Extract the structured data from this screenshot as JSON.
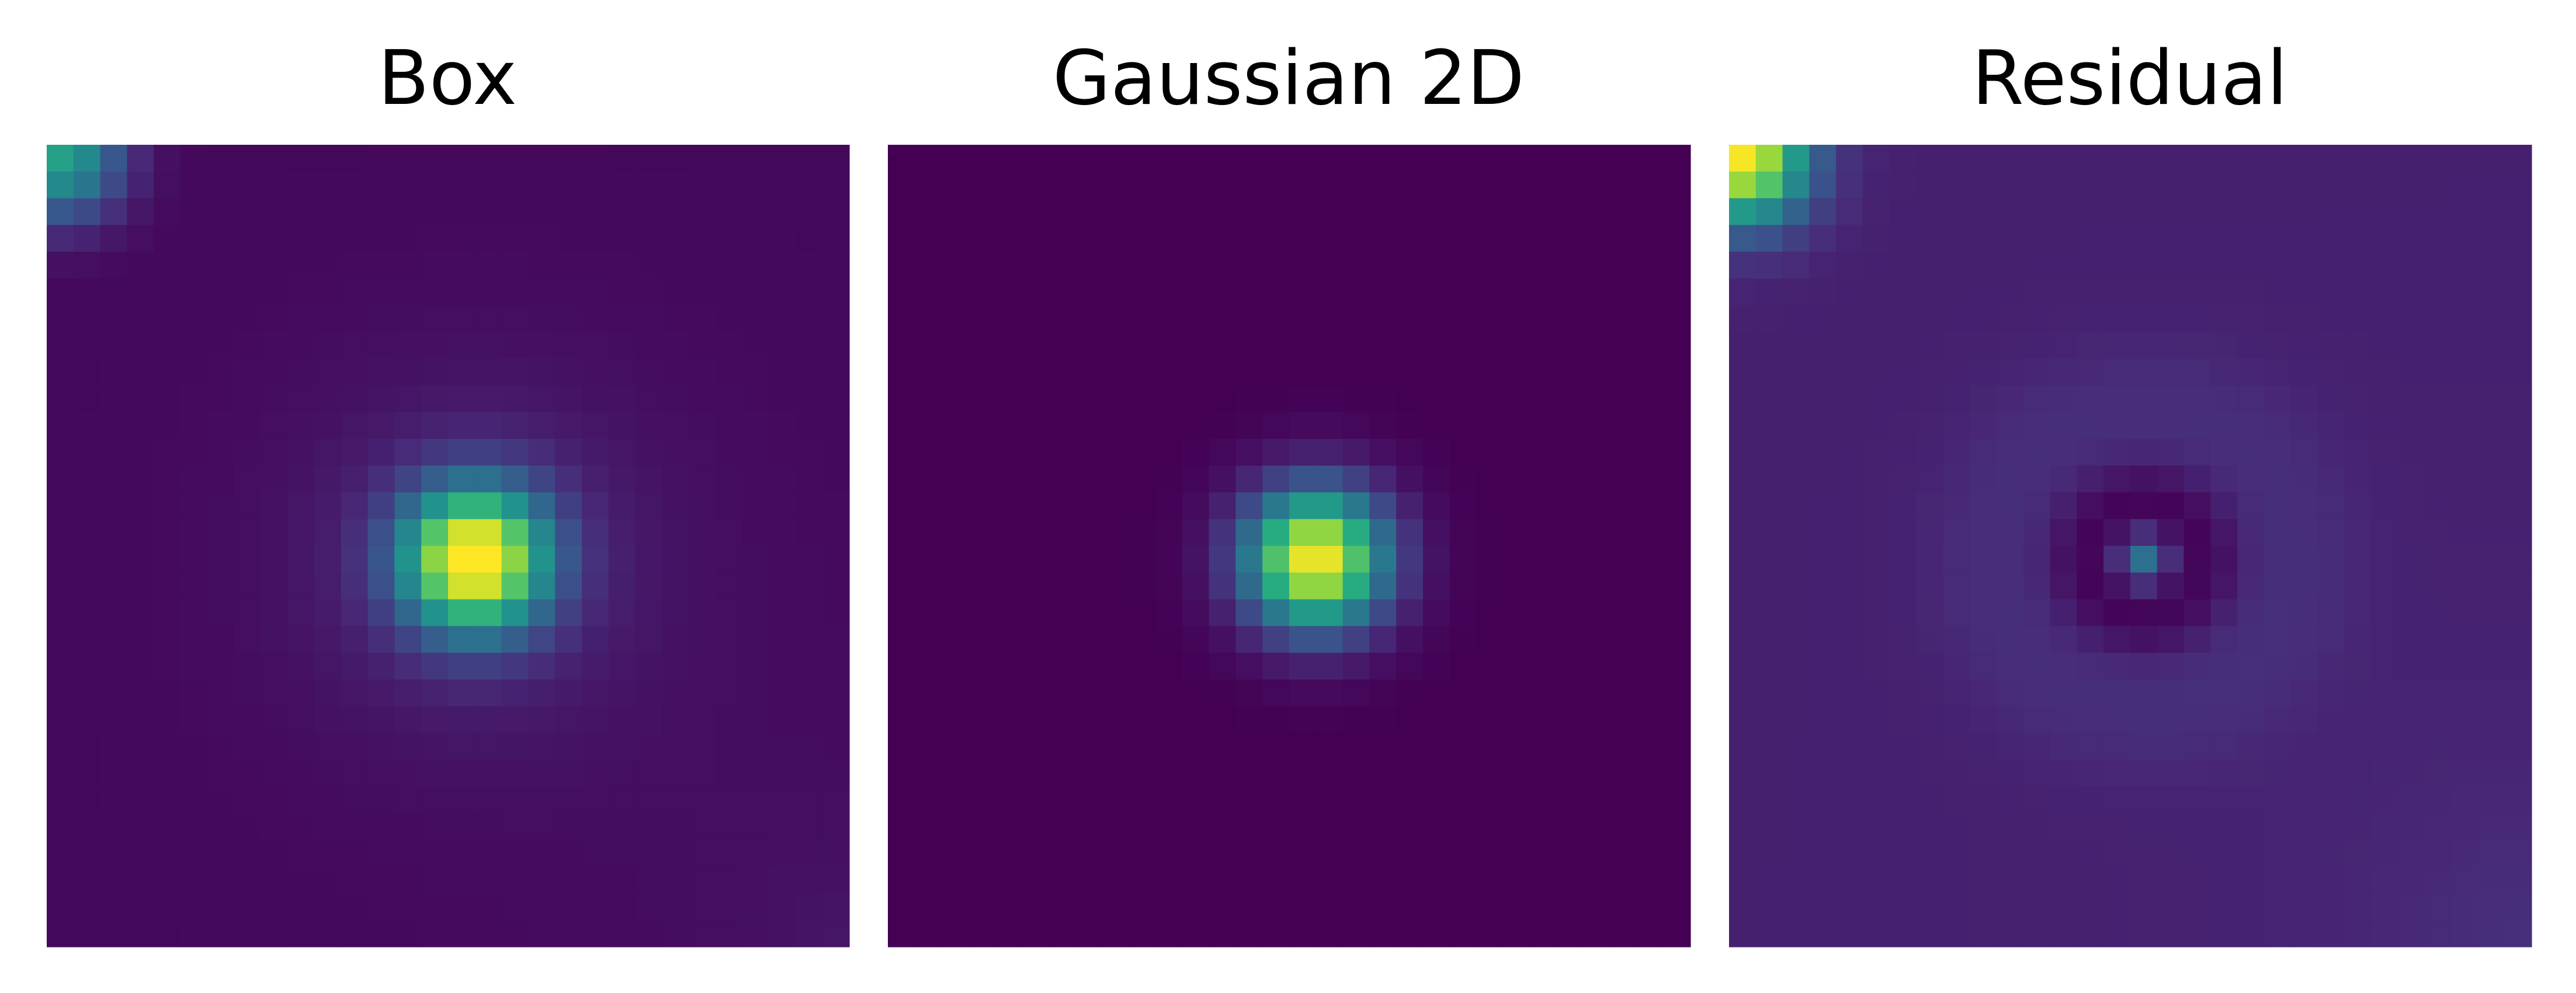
{
  "chart_data": [
    {
      "type": "heatmap",
      "title": "Box",
      "grid": false,
      "colormap": "viridis",
      "size": [
        30,
        30
      ],
      "vmin": 0,
      "vmax": 1,
      "model": {
        "background": 0.02,
        "peak": {
          "row": 15,
          "col": 15.5,
          "amplitude": 0.98,
          "sigma": 1.9
        },
        "halo": {
          "amplitude": 0.09,
          "sigma": 5.0
        },
        "corner_artifact": {
          "row": 0,
          "col": 0,
          "amplitude": 0.55,
          "sigma": 1.6
        },
        "edge_glow": {
          "corner": "bottom-right",
          "amplitude": 0.04
        }
      }
    },
    {
      "type": "heatmap",
      "title": "Gaussian 2D",
      "grid": false,
      "colormap": "viridis",
      "size": [
        30,
        30
      ],
      "vmin": 0,
      "vmax": 1,
      "model": {
        "background": 0.0,
        "peak": {
          "row": 15,
          "col": 15.5,
          "amplitude": 1.0,
          "sigma": 1.85
        }
      }
    },
    {
      "type": "heatmap",
      "title": "Residual",
      "grid": false,
      "colormap": "viridis",
      "size": [
        30,
        30
      ],
      "vmin": 0,
      "vmax": 1,
      "model": {
        "background": 0.09,
        "ring": {
          "row": 15,
          "col": 15,
          "radius": 2.2,
          "depth": 0.09,
          "width": 0.9
        },
        "center_spot": {
          "row": 15,
          "col": 15,
          "amplitude": 0.28,
          "sigma": 0.6
        },
        "halo": {
          "row": 15,
          "col": 15,
          "radius": 5.5,
          "amplitude": 0.04,
          "width": 2.0
        },
        "corner_artifact": {
          "row": 0,
          "col": 0,
          "amplitude": 0.9,
          "sigma": 1.7
        },
        "edge_glow": {
          "corner": "bottom-right",
          "amplitude": 0.05
        }
      }
    }
  ]
}
